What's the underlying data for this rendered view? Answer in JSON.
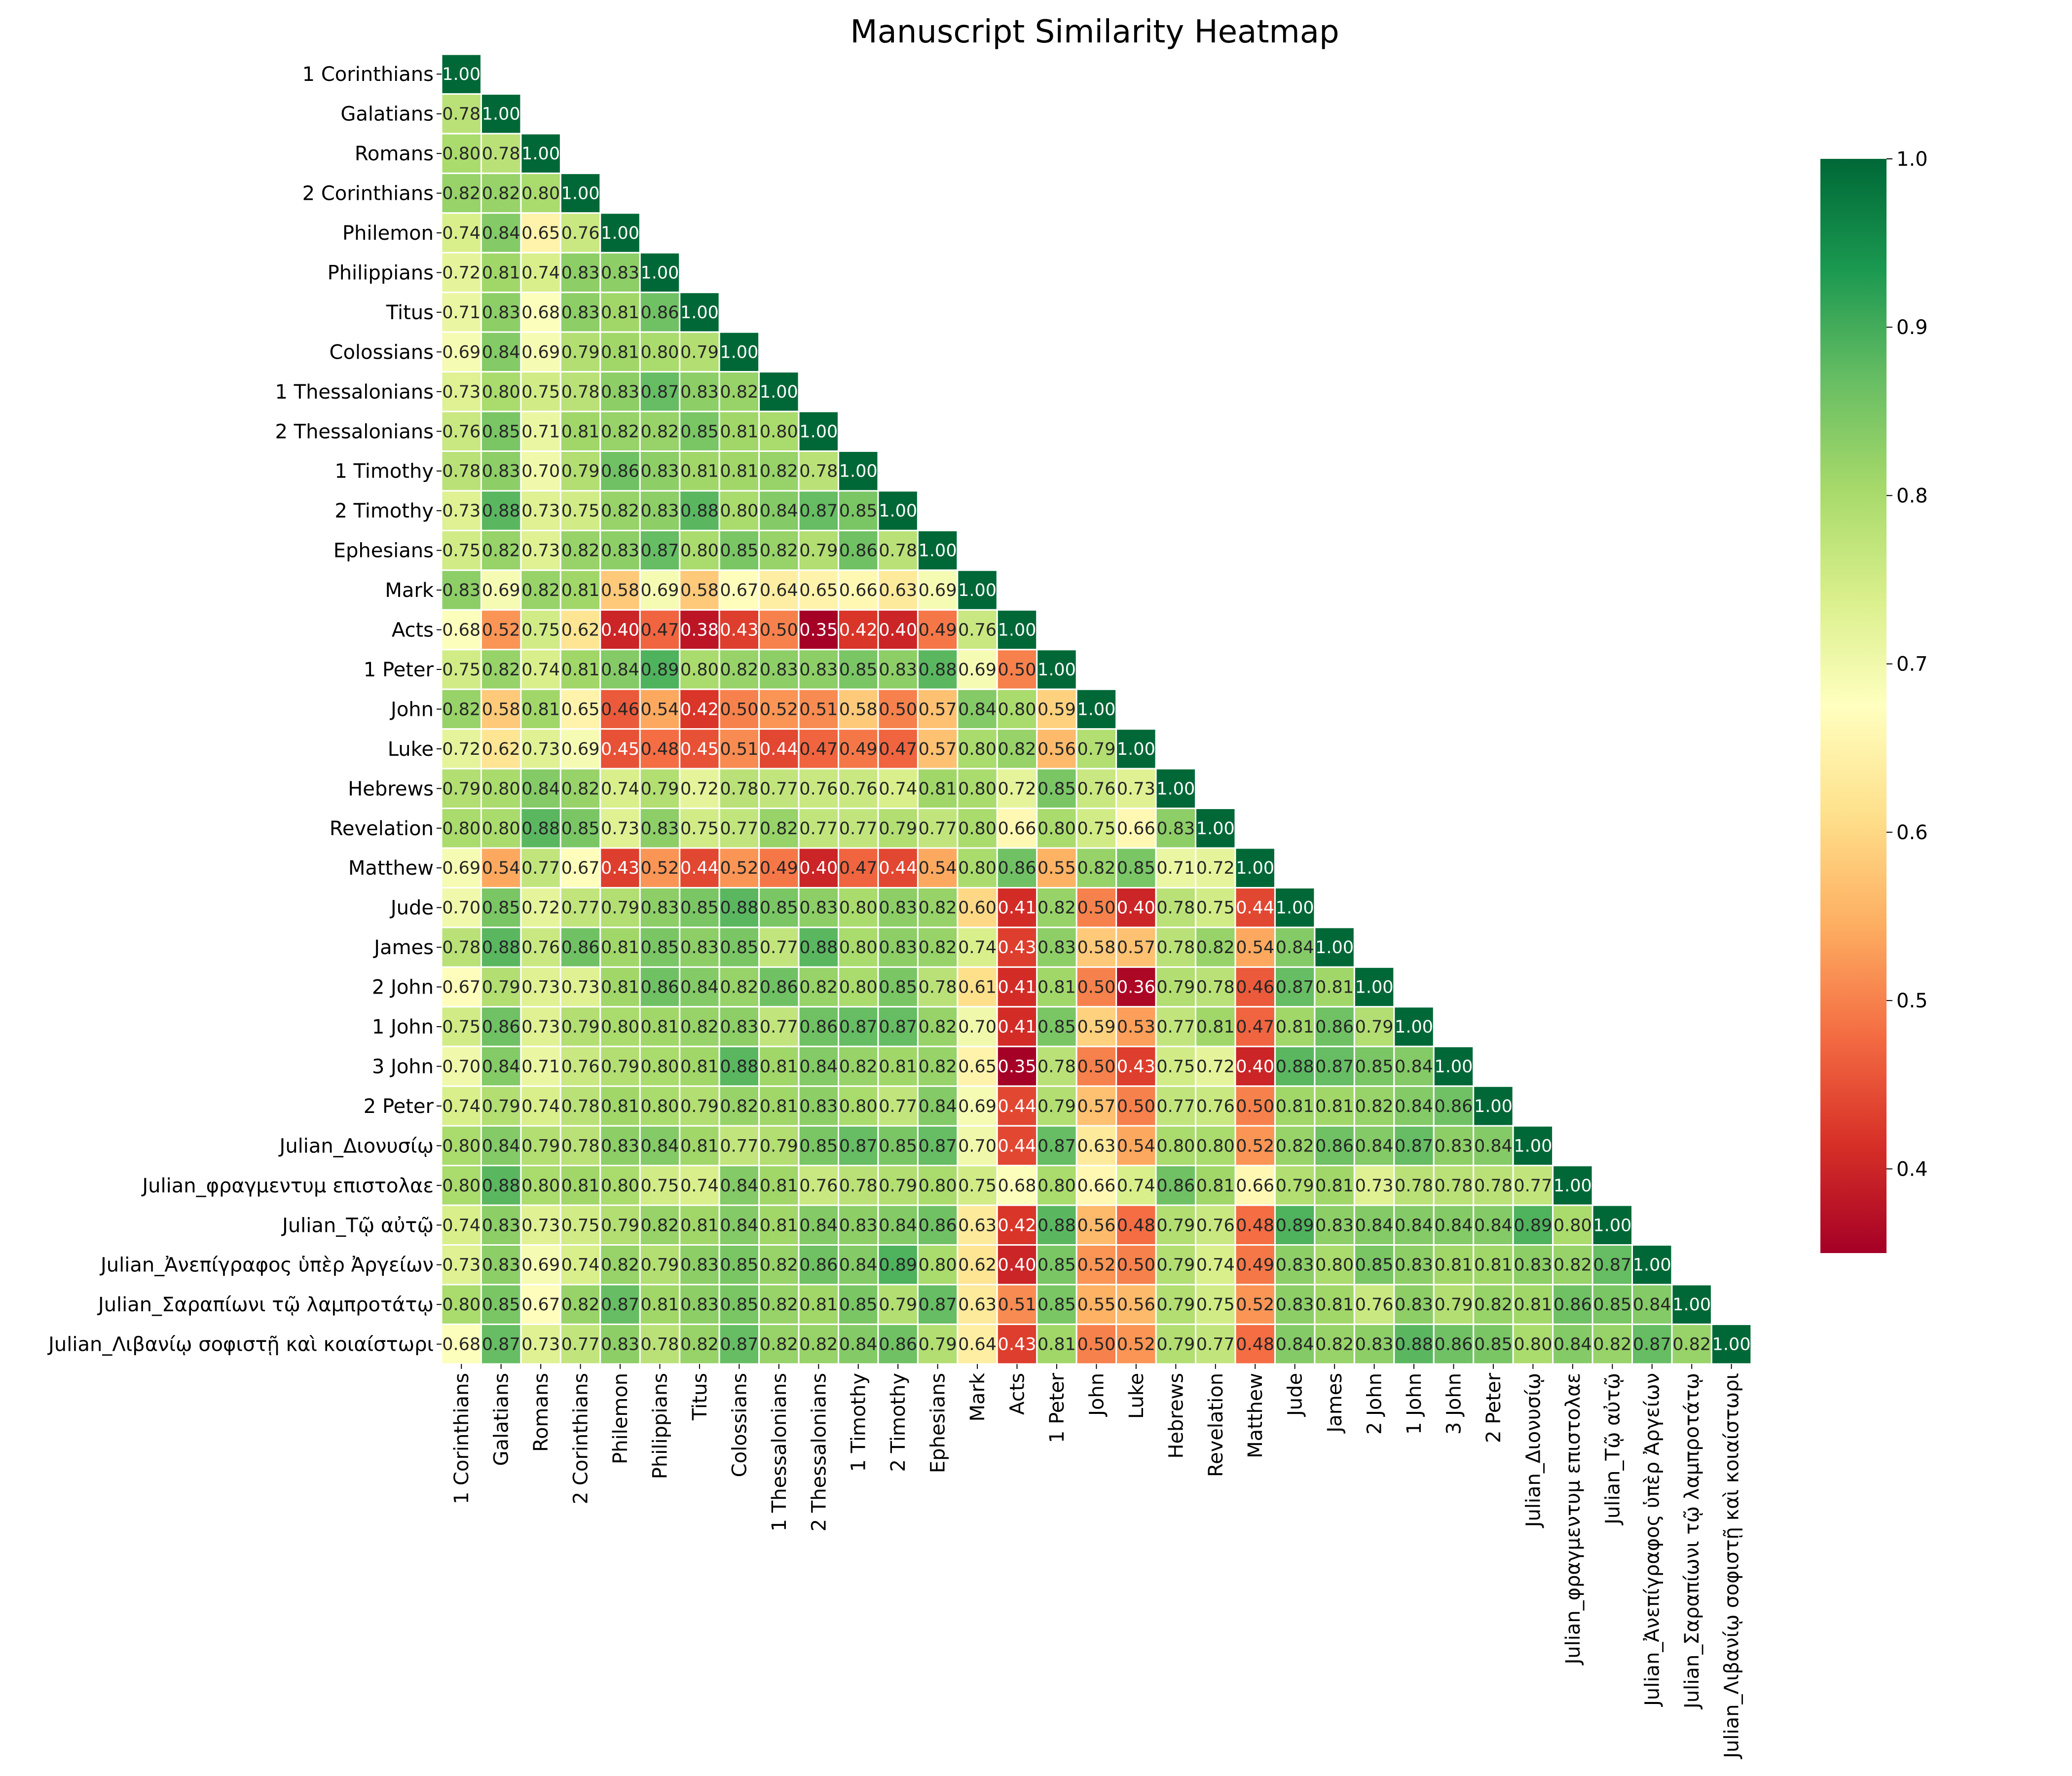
{
  "chart_data": {
    "type": "heatmap",
    "title": "Manuscript Similarity Heatmap",
    "mask": "upper-triangle",
    "cmap": "RdYlGn",
    "labels": [
      "1 Corinthians",
      "Galatians",
      "Romans",
      "2 Corinthians",
      "Philemon",
      "Philippians",
      "Titus",
      "Colossians",
      "1 Thessalonians",
      "2 Thessalonians",
      "1 Timothy",
      "2 Timothy",
      "Ephesians",
      "Mark",
      "Acts",
      "1 Peter",
      "John",
      "Luke",
      "Hebrews",
      "Revelation",
      "Matthew",
      "Jude",
      "James",
      "2 John",
      "1 John",
      "3 John",
      "2 Peter",
      "Julian_Διονυσίῳ",
      "Julian_φραγμεντυμ επιστολαε",
      "Julian_Τῷ αὐτῷ",
      "Julian_Ἀνεπίγραφος ὑπὲρ Ἀργείων",
      "Julian_Σαραπίωνι τῷ λαμπροτάτῳ",
      "Julian_Λιβανίῳ σοφιστῇ καὶ κοιαίστωρι"
    ],
    "rows": [
      [
        1.0
      ],
      [
        0.78,
        1.0
      ],
      [
        0.8,
        0.78,
        1.0
      ],
      [
        0.82,
        0.82,
        0.8,
        1.0
      ],
      [
        0.74,
        0.84,
        0.65,
        0.76,
        1.0
      ],
      [
        0.72,
        0.81,
        0.74,
        0.83,
        0.83,
        1.0
      ],
      [
        0.71,
        0.83,
        0.68,
        0.83,
        0.81,
        0.86,
        1.0
      ],
      [
        0.69,
        0.84,
        0.69,
        0.79,
        0.81,
        0.8,
        0.79,
        1.0
      ],
      [
        0.73,
        0.8,
        0.75,
        0.78,
        0.83,
        0.87,
        0.83,
        0.82,
        1.0
      ],
      [
        0.76,
        0.85,
        0.71,
        0.81,
        0.82,
        0.82,
        0.85,
        0.81,
        0.8,
        1.0
      ],
      [
        0.78,
        0.83,
        0.7,
        0.79,
        0.86,
        0.83,
        0.81,
        0.81,
        0.82,
        0.78,
        1.0
      ],
      [
        0.73,
        0.88,
        0.73,
        0.75,
        0.82,
        0.83,
        0.88,
        0.8,
        0.84,
        0.87,
        0.85,
        1.0
      ],
      [
        0.75,
        0.82,
        0.73,
        0.82,
        0.83,
        0.87,
        0.8,
        0.85,
        0.82,
        0.79,
        0.86,
        0.78,
        1.0
      ],
      [
        0.83,
        0.69,
        0.82,
        0.81,
        0.58,
        0.69,
        0.58,
        0.67,
        0.64,
        0.65,
        0.66,
        0.63,
        0.69,
        1.0
      ],
      [
        0.68,
        0.52,
        0.75,
        0.62,
        0.4,
        0.47,
        0.38,
        0.43,
        0.5,
        0.35,
        0.42,
        0.4,
        0.49,
        0.76,
        1.0
      ],
      [
        0.75,
        0.82,
        0.74,
        0.81,
        0.84,
        0.89,
        0.8,
        0.82,
        0.83,
        0.83,
        0.85,
        0.83,
        0.88,
        0.69,
        0.5,
        1.0
      ],
      [
        0.82,
        0.58,
        0.81,
        0.65,
        0.46,
        0.54,
        0.42,
        0.5,
        0.52,
        0.51,
        0.58,
        0.5,
        0.57,
        0.84,
        0.8,
        0.59,
        1.0
      ],
      [
        0.72,
        0.62,
        0.73,
        0.69,
        0.45,
        0.48,
        0.45,
        0.51,
        0.44,
        0.47,
        0.49,
        0.47,
        0.57,
        0.8,
        0.82,
        0.56,
        0.79,
        1.0
      ],
      [
        0.79,
        0.8,
        0.84,
        0.82,
        0.74,
        0.79,
        0.72,
        0.78,
        0.77,
        0.76,
        0.76,
        0.74,
        0.81,
        0.8,
        0.72,
        0.85,
        0.76,
        0.73,
        1.0
      ],
      [
        0.8,
        0.8,
        0.88,
        0.85,
        0.73,
        0.83,
        0.75,
        0.77,
        0.82,
        0.77,
        0.77,
        0.79,
        0.77,
        0.8,
        0.66,
        0.8,
        0.75,
        0.66,
        0.83,
        1.0
      ],
      [
        0.69,
        0.54,
        0.77,
        0.67,
        0.43,
        0.52,
        0.44,
        0.52,
        0.49,
        0.4,
        0.47,
        0.44,
        0.54,
        0.8,
        0.86,
        0.55,
        0.82,
        0.85,
        0.71,
        0.72,
        1.0
      ],
      [
        0.7,
        0.85,
        0.72,
        0.77,
        0.79,
        0.83,
        0.85,
        0.88,
        0.85,
        0.83,
        0.8,
        0.83,
        0.82,
        0.6,
        0.41,
        0.82,
        0.5,
        0.4,
        0.78,
        0.75,
        0.44,
        1.0
      ],
      [
        0.78,
        0.88,
        0.76,
        0.86,
        0.81,
        0.85,
        0.83,
        0.85,
        0.77,
        0.88,
        0.8,
        0.83,
        0.82,
        0.74,
        0.43,
        0.83,
        0.58,
        0.57,
        0.78,
        0.82,
        0.54,
        0.84,
        1.0
      ],
      [
        0.67,
        0.79,
        0.73,
        0.73,
        0.81,
        0.86,
        0.84,
        0.82,
        0.86,
        0.82,
        0.8,
        0.85,
        0.78,
        0.61,
        0.41,
        0.81,
        0.5,
        0.36,
        0.79,
        0.78,
        0.46,
        0.87,
        0.81,
        1.0
      ],
      [
        0.75,
        0.86,
        0.73,
        0.79,
        0.8,
        0.81,
        0.82,
        0.83,
        0.77,
        0.86,
        0.87,
        0.87,
        0.82,
        0.7,
        0.41,
        0.85,
        0.59,
        0.53,
        0.77,
        0.81,
        0.47,
        0.81,
        0.86,
        0.79,
        1.0
      ],
      [
        0.7,
        0.84,
        0.71,
        0.76,
        0.79,
        0.8,
        0.81,
        0.88,
        0.81,
        0.84,
        0.82,
        0.81,
        0.82,
        0.65,
        0.35,
        0.78,
        0.5,
        0.43,
        0.75,
        0.72,
        0.4,
        0.88,
        0.87,
        0.85,
        0.84,
        1.0
      ],
      [
        0.74,
        0.79,
        0.74,
        0.78,
        0.81,
        0.8,
        0.79,
        0.82,
        0.81,
        0.83,
        0.8,
        0.77,
        0.84,
        0.69,
        0.44,
        0.79,
        0.57,
        0.5,
        0.77,
        0.76,
        0.5,
        0.81,
        0.81,
        0.82,
        0.84,
        0.86,
        1.0
      ],
      [
        0.8,
        0.84,
        0.79,
        0.78,
        0.83,
        0.84,
        0.81,
        0.77,
        0.79,
        0.85,
        0.87,
        0.85,
        0.87,
        0.7,
        0.44,
        0.87,
        0.63,
        0.54,
        0.8,
        0.8,
        0.52,
        0.82,
        0.86,
        0.84,
        0.87,
        0.83,
        0.84,
        1.0
      ],
      [
        0.8,
        0.88,
        0.8,
        0.81,
        0.8,
        0.75,
        0.74,
        0.84,
        0.81,
        0.76,
        0.78,
        0.79,
        0.8,
        0.75,
        0.68,
        0.8,
        0.66,
        0.74,
        0.86,
        0.81,
        0.66,
        0.79,
        0.81,
        0.73,
        0.78,
        0.78,
        0.78,
        0.77,
        1.0
      ],
      [
        0.74,
        0.83,
        0.73,
        0.75,
        0.79,
        0.82,
        0.81,
        0.84,
        0.81,
        0.84,
        0.83,
        0.84,
        0.86,
        0.63,
        0.42,
        0.88,
        0.56,
        0.48,
        0.79,
        0.76,
        0.48,
        0.89,
        0.83,
        0.84,
        0.84,
        0.84,
        0.84,
        0.89,
        0.8,
        1.0
      ],
      [
        0.73,
        0.83,
        0.69,
        0.74,
        0.82,
        0.79,
        0.83,
        0.85,
        0.82,
        0.86,
        0.84,
        0.89,
        0.8,
        0.62,
        0.4,
        0.85,
        0.52,
        0.5,
        0.79,
        0.74,
        0.49,
        0.83,
        0.8,
        0.85,
        0.83,
        0.81,
        0.81,
        0.83,
        0.82,
        0.87,
        1.0
      ],
      [
        0.8,
        0.85,
        0.67,
        0.82,
        0.87,
        0.81,
        0.83,
        0.85,
        0.82,
        0.81,
        0.85,
        0.79,
        0.87,
        0.63,
        0.51,
        0.85,
        0.55,
        0.56,
        0.79,
        0.75,
        0.52,
        0.83,
        0.81,
        0.76,
        0.83,
        0.79,
        0.82,
        0.81,
        0.86,
        0.85,
        0.84,
        1.0
      ],
      [
        0.68,
        0.87,
        0.73,
        0.77,
        0.83,
        0.78,
        0.82,
        0.87,
        0.82,
        0.82,
        0.84,
        0.86,
        0.79,
        0.64,
        0.43,
        0.81,
        0.5,
        0.52,
        0.79,
        0.77,
        0.48,
        0.84,
        0.82,
        0.83,
        0.88,
        0.86,
        0.85,
        0.8,
        0.84,
        0.82,
        0.87,
        0.82,
        1.0
      ]
    ],
    "value_format": "0.00",
    "vmin": 0.35,
    "vmax": 1.0,
    "colorbar": {
      "ticks": [
        "0.4",
        "0.5",
        "0.6",
        "0.7",
        "0.8",
        "0.9",
        "1.0"
      ]
    },
    "grid": false
  }
}
